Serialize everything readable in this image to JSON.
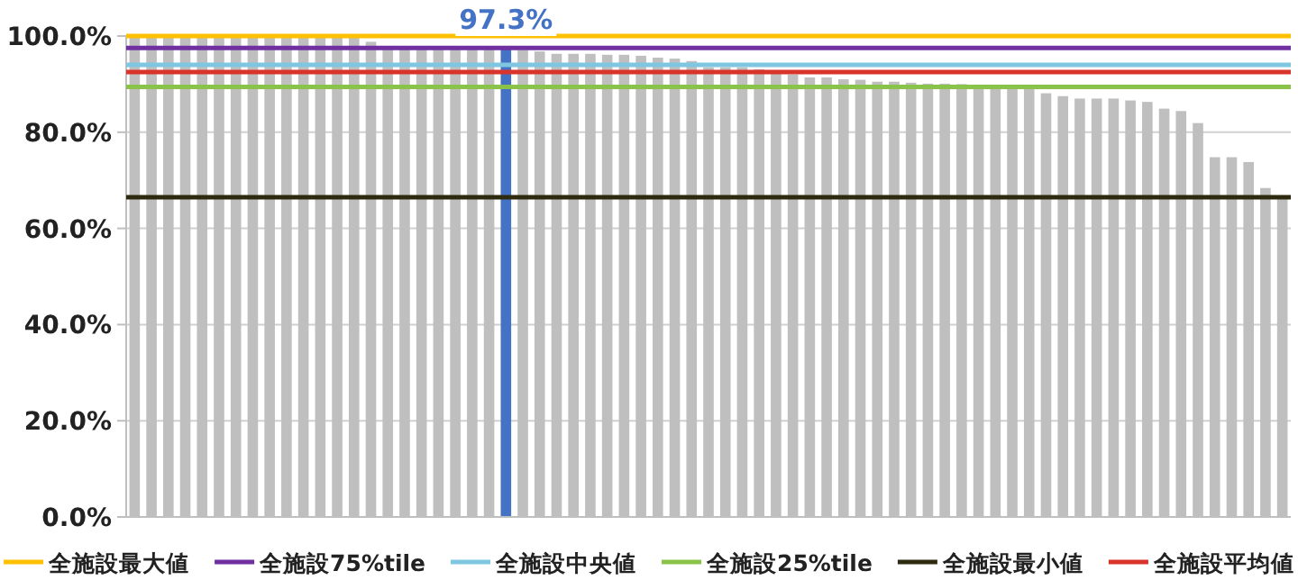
{
  "chart_data": {
    "type": "bar",
    "categories": [
      null,
      null,
      null,
      null,
      null,
      null,
      null,
      null,
      null,
      null,
      null,
      null,
      null,
      null,
      null,
      null,
      null,
      null,
      null,
      null,
      null,
      null,
      null,
      null,
      null,
      null,
      null,
      null,
      null,
      null,
      null,
      null,
      null,
      null,
      null,
      null,
      null,
      null,
      null,
      null,
      null,
      null,
      null,
      null,
      null,
      null,
      null,
      null,
      null,
      null,
      null,
      null,
      null,
      null,
      null,
      null,
      null,
      null,
      null,
      null,
      null,
      null,
      null,
      null,
      null,
      null,
      null,
      null,
      null
    ],
    "values": [
      100,
      100,
      100,
      100,
      100,
      100,
      100,
      100,
      100,
      100,
      100,
      100,
      100,
      100,
      98.8,
      97.5,
      97.5,
      97.5,
      97.5,
      97.5,
      97.5,
      97.5,
      97.3,
      97.1,
      96.8,
      96.3,
      96.3,
      96.3,
      96.1,
      96.1,
      95.9,
      95.5,
      95.3,
      94.8,
      93.5,
      93.5,
      93.5,
      93.1,
      92.3,
      92,
      91.4,
      91.4,
      91,
      90.9,
      90.5,
      90.5,
      90.3,
      90.1,
      90.1,
      90,
      89.5,
      89.4,
      89.4,
      89.4,
      88.1,
      87.5,
      87,
      87,
      87,
      86.6,
      86.3,
      84.9,
      84.4,
      81.9,
      74.8,
      74.8,
      73.8,
      68.4,
      66.5
    ],
    "colors": [
      "#bfbfbf",
      "#bfbfbf",
      "#bfbfbf",
      "#bfbfbf",
      "#bfbfbf",
      "#bfbfbf",
      "#bfbfbf",
      "#bfbfbf",
      "#bfbfbf",
      "#bfbfbf",
      "#bfbfbf",
      "#bfbfbf",
      "#bfbfbf",
      "#bfbfbf",
      "#bfbfbf",
      "#bfbfbf",
      "#bfbfbf",
      "#bfbfbf",
      "#bfbfbf",
      "#bfbfbf",
      "#bfbfbf",
      "#bfbfbf",
      "#4472c4",
      "#bfbfbf",
      "#bfbfbf",
      "#bfbfbf",
      "#bfbfbf",
      "#bfbfbf",
      "#bfbfbf",
      "#bfbfbf",
      "#bfbfbf",
      "#bfbfbf",
      "#bfbfbf",
      "#bfbfbf",
      "#bfbfbf",
      "#bfbfbf",
      "#bfbfbf",
      "#bfbfbf",
      "#bfbfbf",
      "#bfbfbf",
      "#bfbfbf",
      "#bfbfbf",
      "#bfbfbf",
      "#bfbfbf",
      "#bfbfbf",
      "#bfbfbf",
      "#bfbfbf",
      "#bfbfbf",
      "#bfbfbf",
      "#bfbfbf",
      "#bfbfbf",
      "#bfbfbf",
      "#bfbfbf",
      "#bfbfbf",
      "#bfbfbf",
      "#bfbfbf",
      "#bfbfbf",
      "#bfbfbf",
      "#bfbfbf",
      "#bfbfbf",
      "#bfbfbf",
      "#bfbfbf",
      "#bfbfbf",
      "#bfbfbf",
      "#bfbfbf",
      "#bfbfbf",
      "#bfbfbf",
      "#bfbfbf",
      "#bfbfbf"
    ],
    "value_labels": [
      null,
      null,
      null,
      null,
      null,
      null,
      null,
      null,
      null,
      null,
      null,
      null,
      null,
      null,
      null,
      null,
      null,
      null,
      null,
      null,
      null,
      null,
      "97.3%",
      null,
      null,
      null,
      null,
      null,
      null,
      null,
      null,
      null,
      null,
      null,
      null,
      null,
      null,
      null,
      null,
      null,
      null,
      null,
      null,
      null,
      null,
      null,
      null,
      null,
      null,
      null,
      null,
      null,
      null,
      null,
      null,
      null,
      null,
      null,
      null,
      null,
      null,
      null,
      null,
      null,
      null,
      null,
      null,
      null,
      null
    ],
    "ylim": [
      0,
      100
    ],
    "yticks": [
      {
        "value": 0,
        "label": "0.0%"
      },
      {
        "value": 20,
        "label": "20.0%"
      },
      {
        "value": 40,
        "label": "40.0%"
      },
      {
        "value": 60,
        "label": "60.0%"
      },
      {
        "value": 80,
        "label": "80.0%"
      },
      {
        "value": 100,
        "label": "100.0%"
      }
    ],
    "grid": "y",
    "legend": "bottom",
    "ref_lines": [
      {
        "axis": "y",
        "value": 100,
        "label": "全施設最大値",
        "color": "#ffc000"
      },
      {
        "axis": "y",
        "value": 97.5,
        "label": "全施設75%tile",
        "color": "#7030a0"
      },
      {
        "axis": "y",
        "value": 94,
        "label": "全施設中央値",
        "color": "#7fc6e0"
      },
      {
        "axis": "y",
        "value": 89.4,
        "label": "全施設25%tile",
        "color": "#8bc34a"
      },
      {
        "axis": "y",
        "value": 66.5,
        "label": "全施設最小値",
        "color": "#2e2a10"
      },
      {
        "axis": "y",
        "value": 92.5,
        "label": "全施設平均値",
        "color": "#d9342b"
      }
    ]
  }
}
